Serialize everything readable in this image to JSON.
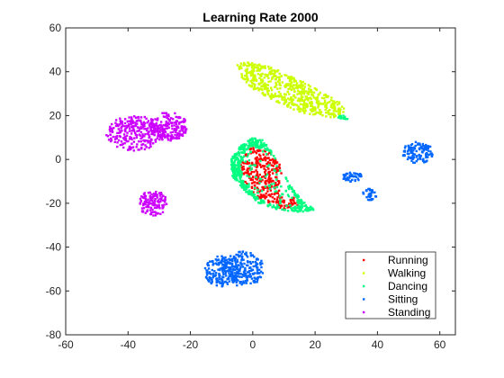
{
  "chart_data": {
    "type": "scatter",
    "title": "Learning Rate 2000",
    "xlabel": "",
    "ylabel": "",
    "xlim": [
      -60,
      65
    ],
    "ylim": [
      -80,
      60
    ],
    "xticks": [
      -60,
      -40,
      -20,
      0,
      20,
      40,
      60
    ],
    "yticks": [
      -80,
      -60,
      -40,
      -20,
      0,
      20,
      40,
      60
    ],
    "grid": false,
    "legend_position": "bottom-right",
    "series": [
      {
        "name": "Running",
        "color": "#ff0000",
        "clusters": [
          {
            "shape": "poly",
            "points": [
              [
                -1,
                6
              ],
              [
                5,
                4
              ],
              [
                9,
                -3
              ],
              [
                12,
                -13
              ],
              [
                15,
                -21
              ],
              [
                10,
                -23
              ],
              [
                2,
                -18
              ],
              [
                -3,
                -10
              ],
              [
                -4,
                -2
              ]
            ],
            "n": 320,
            "hole": {
              "cx": 11,
              "cy": -12,
              "rx": 2.5,
              "ry": 7
            }
          }
        ]
      },
      {
        "name": "Walking",
        "color": "#ccff00",
        "clusters": [
          {
            "shape": "poly",
            "points": [
              [
                -3,
                45
              ],
              [
                6,
                42
              ],
              [
                14,
                37
              ],
              [
                22,
                31
              ],
              [
                28,
                26
              ],
              [
                30,
                22
              ],
              [
                26,
                19
              ],
              [
                16,
                21
              ],
              [
                8,
                26
              ],
              [
                0,
                32
              ],
              [
                -4,
                38
              ],
              [
                -5,
                43
              ]
            ],
            "n": 560
          }
        ]
      },
      {
        "name": "Dancing",
        "color": "#00ff80",
        "clusters": [
          {
            "shape": "poly",
            "points": [
              [
                0,
                10
              ],
              [
                3,
                9
              ],
              [
                6,
                4
              ],
              [
                9,
                -4
              ],
              [
                12,
                -12
              ],
              [
                16,
                -19
              ],
              [
                20,
                -23
              ],
              [
                15,
                -24
              ],
              [
                8,
                -23
              ],
              [
                2,
                -20
              ],
              [
                -3,
                -14
              ],
              [
                -7,
                -7
              ],
              [
                -7,
                1
              ],
              [
                -4,
                6
              ]
            ],
            "n": 520,
            "avoid": [
              [
                -1,
                6
              ],
              [
                5,
                4
              ],
              [
                9,
                -3
              ],
              [
                12,
                -13
              ],
              [
                15,
                -21
              ],
              [
                10,
                -23
              ],
              [
                2,
                -18
              ],
              [
                -3,
                -10
              ],
              [
                -4,
                -2
              ]
            ]
          },
          {
            "shape": "ellipse",
            "cx": 29,
            "cy": 19,
            "rx": 1.6,
            "ry": 1.4,
            "n": 12
          }
        ]
      },
      {
        "name": "Sitting",
        "color": "#0066ff",
        "clusters": [
          {
            "shape": "ellipse",
            "cx": 53,
            "cy": 3,
            "rx": 5,
            "ry": 5,
            "n": 120
          },
          {
            "shape": "ellipse",
            "cx": 32,
            "cy": -8,
            "rx": 3.2,
            "ry": 2.2,
            "n": 45
          },
          {
            "shape": "ellipse",
            "cx": 37.5,
            "cy": -16,
            "rx": 2.3,
            "ry": 2.6,
            "n": 35
          },
          {
            "shape": "ellipse",
            "cx": -10,
            "cy": -51,
            "rx": 5.5,
            "ry": 7,
            "n": 160
          },
          {
            "shape": "ellipse",
            "cx": -3,
            "cy": -50,
            "rx": 6.5,
            "ry": 8,
            "n": 200
          }
        ]
      },
      {
        "name": "Standing",
        "color": "#cc00ff",
        "clusters": [
          {
            "shape": "ellipse",
            "cx": -38,
            "cy": 12,
            "rx": 9,
            "ry": 8,
            "n": 260
          },
          {
            "shape": "ellipse",
            "cx": -27,
            "cy": 15,
            "rx": 6,
            "ry": 6.5,
            "n": 180
          },
          {
            "shape": "ellipse",
            "cx": -32,
            "cy": -20,
            "rx": 4.5,
            "ry": 6,
            "n": 130
          }
        ]
      }
    ]
  }
}
